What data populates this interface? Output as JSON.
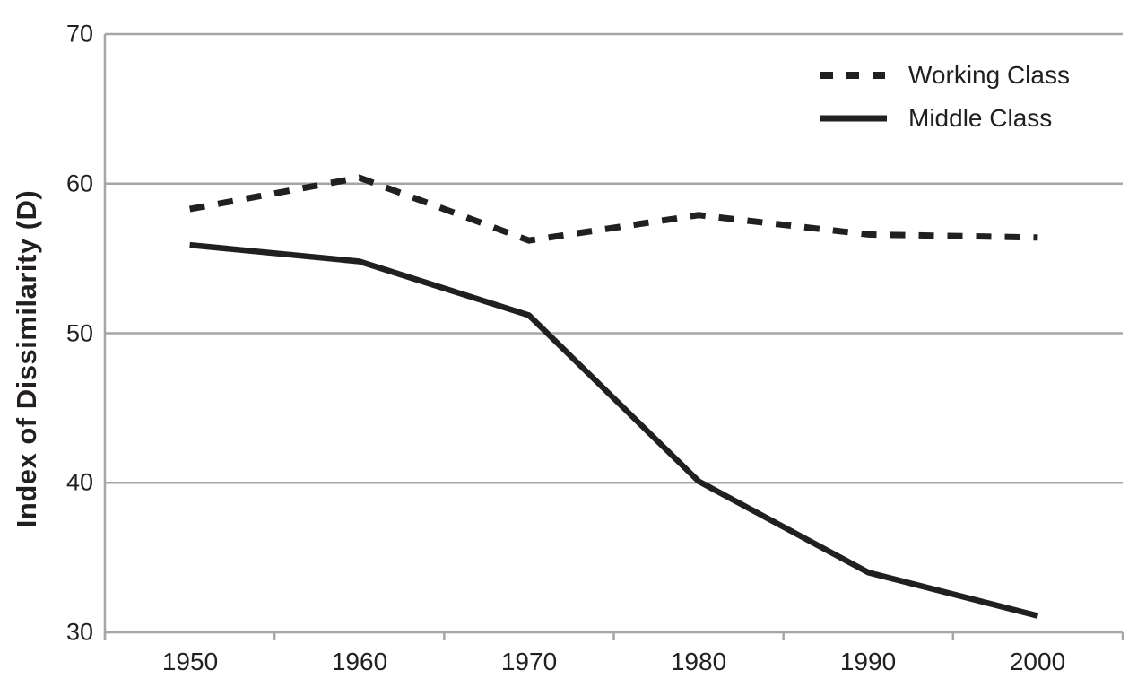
{
  "chart_data": {
    "type": "line",
    "x": [
      1950,
      1960,
      1970,
      1980,
      1990,
      2000
    ],
    "series": [
      {
        "name": "Working Class",
        "style": "dashed",
        "values": [
          58.3,
          60.4,
          56.2,
          57.9,
          56.6,
          56.4
        ]
      },
      {
        "name": "Middle Class",
        "style": "solid",
        "values": [
          55.9,
          54.8,
          51.2,
          40.1,
          34.0,
          31.1
        ]
      }
    ],
    "title": "",
    "xlabel": "",
    "ylabel": "Index of Dissimilarity (D)",
    "ylim": [
      30,
      70
    ],
    "y_ticks": [
      70,
      60,
      50,
      40,
      30
    ],
    "grid": true,
    "legend_position": "top-right",
    "line_color": "#231f20",
    "axis_color": "#a6a6a6",
    "text_color": "#231f20"
  }
}
